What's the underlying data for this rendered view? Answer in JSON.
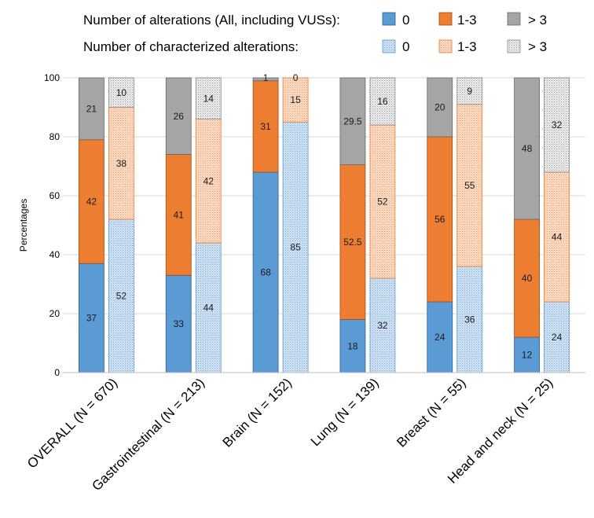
{
  "legend": {
    "row1_label": "Number of alterations (All, including VUSs):",
    "row2_label": "Number of characterized alterations:",
    "keys": [
      "0",
      "1-3",
      "> 3"
    ]
  },
  "colors": {
    "all_0": "#5b9bd5",
    "all_1_3": "#ed7d31",
    "all_gt3": "#a5a5a5",
    "char_0": "#c6dcf0",
    "char_1_3": "#f8cfb0",
    "char_gt3": "#e4e4e4"
  },
  "chart_data": {
    "type": "bar",
    "stacked": true,
    "ylabel": "Percentages",
    "ylim": [
      0,
      100
    ],
    "yticks": [
      0,
      20,
      40,
      60,
      80,
      100
    ],
    "grid": true,
    "legend_position": "top",
    "categories": [
      "OVERALL (N = 670)",
      "Gastrointestinal (N = 213)",
      "Brain (N = 152)",
      "Lung (N = 139)",
      "Breast (N = 55)",
      "Head and neck (N = 25)"
    ],
    "groups": [
      {
        "name": "Number of alterations (All, including VUSs)",
        "series": [
          {
            "name": "0",
            "values": [
              37,
              33,
              68,
              18,
              24,
              12
            ]
          },
          {
            "name": "1-3",
            "values": [
              42,
              41,
              31,
              52.5,
              56,
              40
            ]
          },
          {
            "name": "> 3",
            "values": [
              21,
              26,
              1,
              29.5,
              20,
              48
            ]
          }
        ]
      },
      {
        "name": "Number of characterized alterations",
        "series": [
          {
            "name": "0",
            "values": [
              52,
              44,
              85,
              32,
              36,
              24
            ]
          },
          {
            "name": "1-3",
            "values": [
              38,
              42,
              15,
              52,
              55,
              44
            ]
          },
          {
            "name": "> 3",
            "values": [
              10,
              14,
              0,
              16,
              9,
              32
            ]
          }
        ]
      }
    ]
  }
}
